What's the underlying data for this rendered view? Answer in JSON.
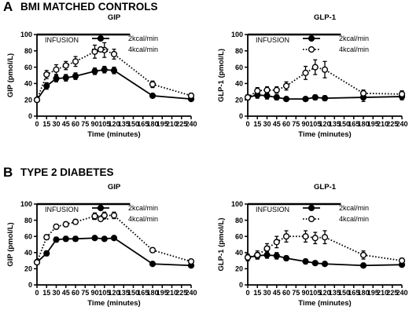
{
  "figure": {
    "panels": [
      {
        "letter": "A",
        "title": "BMI MATCHED CONTROLS"
      },
      {
        "letter": "B",
        "title": "TYPE 2 DIABETES"
      }
    ],
    "infusion_label": "INFUSION",
    "infusion_window": [
      0,
      120
    ],
    "series_styles": [
      {
        "name": "2kcal/min",
        "line": "solid",
        "marker": "filled-circle",
        "color": "#000000"
      },
      {
        "name": "4kcal/min",
        "line": "dotted",
        "marker": "open-circle",
        "color": "#000000"
      }
    ]
  },
  "chart_data": [
    {
      "type": "line",
      "panel": "A",
      "title": "GIP",
      "xlabel": "Time (minutes)",
      "ylabel": "GIP (pmol/L)",
      "xlim": [
        0,
        240
      ],
      "ylim": [
        0,
        100
      ],
      "xticks": [
        0,
        15,
        30,
        45,
        60,
        75,
        90,
        105,
        120,
        135,
        150,
        165,
        180,
        195,
        210,
        225,
        240
      ],
      "yticks": [
        0,
        20,
        40,
        60,
        80,
        100
      ],
      "legend": "top-right",
      "grid": false,
      "series": [
        {
          "name": "2kcal/min",
          "x": [
            0,
            15,
            30,
            45,
            60,
            90,
            105,
            120,
            180,
            240
          ],
          "y": [
            20,
            37,
            46,
            47,
            49,
            55,
            57,
            56,
            25,
            21
          ],
          "err": [
            2,
            4,
            4,
            4,
            4,
            4,
            4,
            4,
            2,
            1
          ]
        },
        {
          "name": "4kcal/min",
          "x": [
            0,
            15,
            30,
            45,
            60,
            90,
            105,
            120,
            180,
            240
          ],
          "y": [
            20,
            51,
            57,
            62,
            67,
            79,
            81,
            76,
            39,
            25
          ],
          "err": [
            2,
            5,
            6,
            5,
            6,
            8,
            9,
            6,
            4,
            3
          ]
        }
      ]
    },
    {
      "type": "line",
      "panel": "A",
      "title": "GLP-1",
      "xlabel": "Time (minutes)",
      "ylabel": "GLP-1 (pmol/L)",
      "xlim": [
        0,
        240
      ],
      "ylim": [
        0,
        100
      ],
      "xticks": [
        0,
        15,
        30,
        45,
        60,
        75,
        90,
        105,
        120,
        135,
        150,
        165,
        180,
        195,
        210,
        225,
        240
      ],
      "yticks": [
        0,
        20,
        40,
        60,
        80,
        100
      ],
      "legend": "top-right",
      "grid": false,
      "series": [
        {
          "name": "2kcal/min",
          "x": [
            0,
            15,
            30,
            45,
            60,
            90,
            105,
            120,
            180,
            240
          ],
          "y": [
            23,
            26,
            25,
            23,
            21,
            21,
            23,
            22,
            23,
            24
          ],
          "err": [
            3,
            4,
            4,
            3,
            2,
            2,
            3,
            3,
            5,
            4
          ]
        },
        {
          "name": "4kcal/min",
          "x": [
            0,
            15,
            30,
            45,
            60,
            90,
            105,
            120,
            180,
            240
          ],
          "y": [
            23,
            31,
            32,
            32,
            37,
            53,
            60,
            57,
            28,
            27
          ],
          "err": [
            3,
            4,
            4,
            4,
            5,
            8,
            9,
            10,
            4,
            4
          ]
        }
      ]
    },
    {
      "type": "line",
      "panel": "B",
      "title": "GIP",
      "xlabel": "Time (minutes)",
      "ylabel": "GIP (pmol/L)",
      "xlim": [
        0,
        240
      ],
      "ylim": [
        0,
        100
      ],
      "xticks": [
        0,
        15,
        30,
        45,
        60,
        75,
        90,
        105,
        120,
        135,
        150,
        165,
        180,
        195,
        210,
        225,
        240
      ],
      "yticks": [
        0,
        20,
        40,
        60,
        80,
        100
      ],
      "legend": "top-right",
      "grid": false,
      "series": [
        {
          "name": "2kcal/min",
          "x": [
            0,
            15,
            30,
            45,
            60,
            90,
            105,
            120,
            180,
            240
          ],
          "y": [
            28,
            39,
            56,
            57,
            57,
            58,
            57,
            58,
            26,
            24
          ],
          "err": [
            3,
            3,
            3,
            3,
            3,
            1,
            1,
            1,
            1,
            1
          ]
        },
        {
          "name": "4kcal/min",
          "x": [
            0,
            15,
            30,
            45,
            60,
            90,
            105,
            120,
            180,
            240
          ],
          "y": [
            28,
            59,
            72,
            75,
            78,
            85,
            86,
            86,
            43,
            29
          ],
          "err": [
            3,
            3,
            3,
            3,
            3,
            4,
            4,
            4,
            3,
            2
          ]
        }
      ]
    },
    {
      "type": "line",
      "panel": "B",
      "title": "GLP-1",
      "xlabel": "Time (minutes)",
      "ylabel": "GLP-1 (pmol/L)",
      "xlim": [
        0,
        240
      ],
      "ylim": [
        0,
        100
      ],
      "xticks": [
        0,
        15,
        30,
        45,
        60,
        75,
        90,
        105,
        120,
        135,
        150,
        165,
        180,
        195,
        210,
        225,
        240
      ],
      "yticks": [
        0,
        20,
        40,
        60,
        80,
        100
      ],
      "legend": "top-right",
      "grid": false,
      "series": [
        {
          "name": "2kcal/min",
          "x": [
            0,
            15,
            30,
            45,
            60,
            90,
            105,
            120,
            180,
            240
          ],
          "y": [
            34,
            36,
            37,
            36,
            33,
            29,
            27,
            26,
            24,
            25
          ],
          "err": [
            4,
            4,
            4,
            4,
            3,
            3,
            2,
            2,
            2,
            2
          ]
        },
        {
          "name": "4kcal/min",
          "x": [
            0,
            15,
            30,
            45,
            60,
            90,
            105,
            120,
            180,
            240
          ],
          "y": [
            34,
            37,
            45,
            53,
            60,
            60,
            58,
            59,
            37,
            30
          ],
          "err": [
            4,
            5,
            6,
            7,
            7,
            7,
            7,
            8,
            5,
            3
          ]
        }
      ]
    }
  ]
}
